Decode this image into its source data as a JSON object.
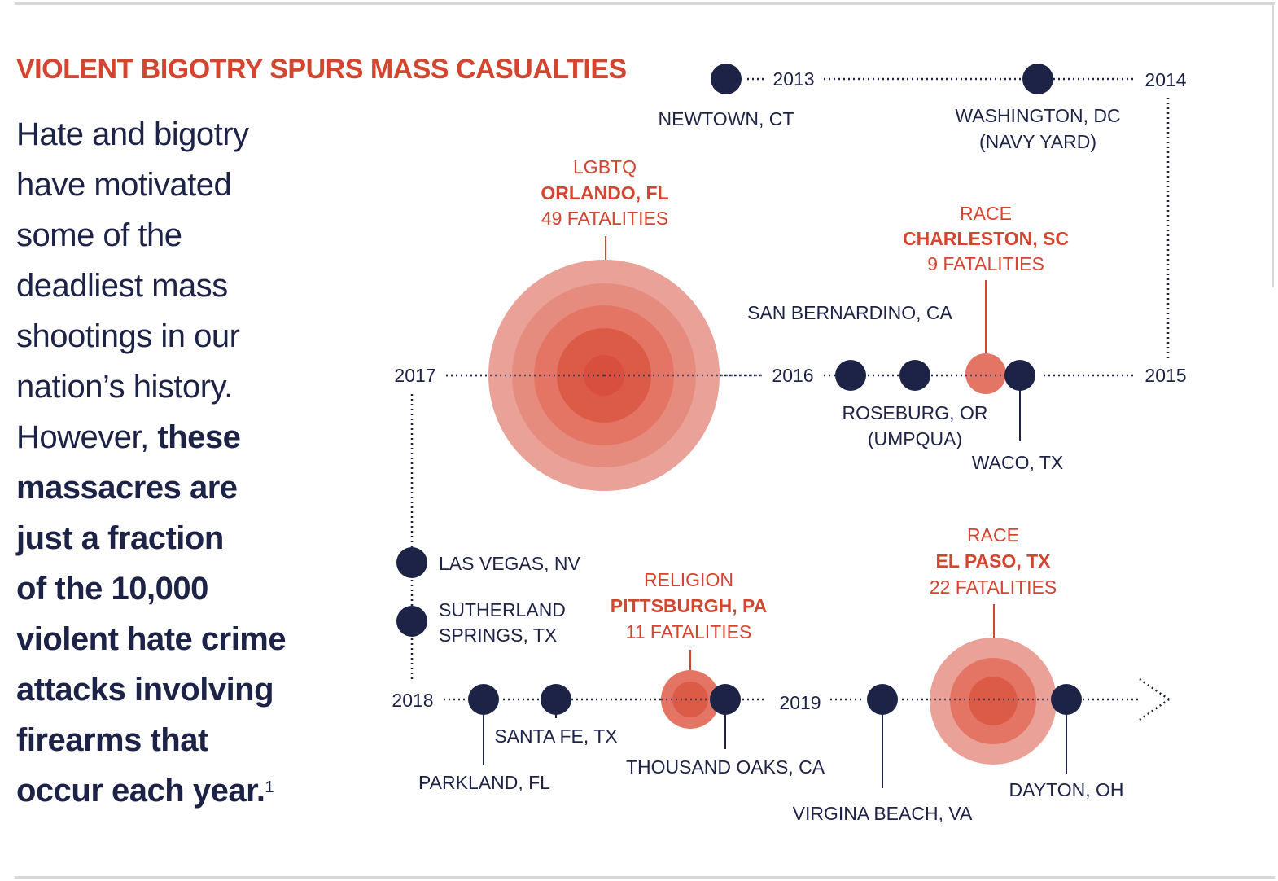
{
  "title": "VIOLENT BIGOTRY SPURS MASS CASUALTIES",
  "intro": {
    "plain_lines": [
      "Hate and bigotry",
      "have motivated",
      "some of the",
      "deadliest mass",
      "shootings in our",
      "nation’s history."
    ],
    "mixed_plain": "However, ",
    "mixed_bold": "these",
    "bold_lines": [
      "massacres are",
      "just a fraction",
      "of the 10,000",
      "violent hate crime",
      "attacks involving",
      "firearms that"
    ],
    "last_bold": "occur each year.",
    "footnote": "1"
  },
  "years": {
    "y2013": "2013",
    "y2014": "2014",
    "y2015": "2015",
    "y2016": "2016",
    "y2017": "2017",
    "y2018": "2018",
    "y2019": "2019"
  },
  "events": {
    "newtown": "NEWTOWN, CT",
    "navy_yard_1": "WASHINGTON, DC",
    "navy_yard_2": "(NAVY YARD)",
    "san_bernardino": "SAN BERNARDINO, CA",
    "roseburg_1": "ROSEBURG, OR",
    "roseburg_2": "(UMPQUA)",
    "waco": "WACO, TX",
    "las_vegas": "LAS VEGAS, NV",
    "sutherland_1": "SUTHERLAND",
    "sutherland_2": "SPRINGS, TX",
    "parkland": "PARKLAND, FL",
    "santa_fe": "SANTA FE, TX",
    "thousand_oaks": "THOUSAND OAKS, CA",
    "virginia_beach": "VIRGINA BEACH, VA",
    "dayton": "DAYTON, OH"
  },
  "hate_events": {
    "orlando": {
      "motive": "LGBTQ",
      "location": "ORLANDO, FL",
      "fatalities": 49,
      "fatalities_label": "49 FATALITIES"
    },
    "charleston": {
      "motive": "RACE",
      "location": "CHARLESTON, SC",
      "fatalities": 9,
      "fatalities_label": "9 FATALITIES"
    },
    "pittsburgh": {
      "motive": "RELIGION",
      "location": "PITTSBURGH, PA",
      "fatalities": 11,
      "fatalities_label": "11 FATALITIES"
    },
    "el_paso": {
      "motive": "RACE",
      "location": "EL PASO, TX",
      "fatalities": 22,
      "fatalities_label": "22 FATALITIES"
    }
  },
  "colors": {
    "accent": "#d4452f",
    "navy": "#1d2347",
    "bubble_outer": "#eaa197",
    "bubble_mid": "#e47565",
    "bubble_core": "#dc5b47"
  }
}
